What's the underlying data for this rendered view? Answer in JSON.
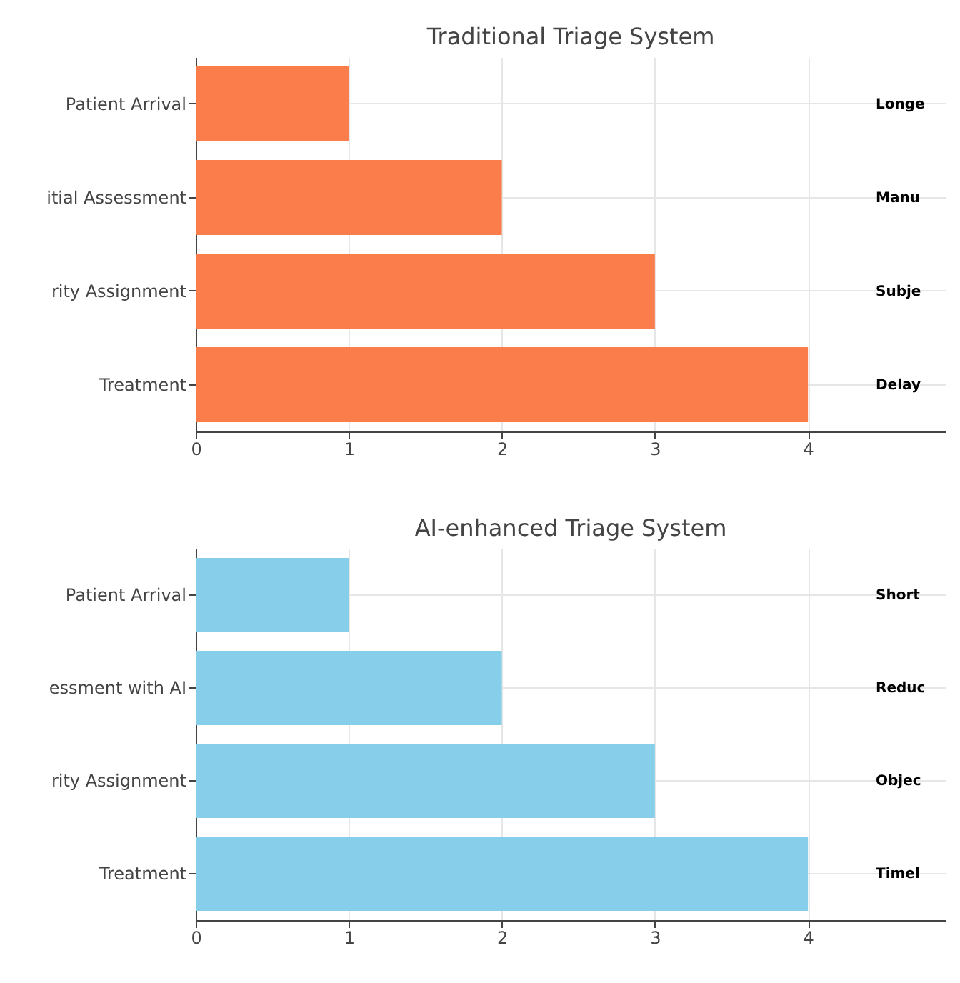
{
  "chart_data": [
    {
      "type": "bar",
      "orientation": "horizontal",
      "title": "Traditional Triage System",
      "categories": [
        "Patient Arrival",
        "itial Assessment",
        "rity Assignment",
        "Treatment"
      ],
      "values": [
        1,
        2,
        3,
        4
      ],
      "color": "#fb7d4c",
      "xlim": [
        0,
        4.9
      ],
      "xticks": [
        0,
        1,
        2,
        3,
        4
      ],
      "grid": true,
      "annotations": [
        "Longe",
        "Manu",
        "Subje",
        "Delay"
      ]
    },
    {
      "type": "bar",
      "orientation": "horizontal",
      "title": "AI-enhanced Triage System",
      "categories": [
        "Patient Arrival",
        "essment with AI",
        "rity Assignment",
        "Treatment"
      ],
      "values": [
        1,
        2,
        3,
        4
      ],
      "color": "#87ceeb",
      "xlim": [
        0,
        4.9
      ],
      "xticks": [
        0,
        1,
        2,
        3,
        4
      ],
      "grid": true,
      "annotations": [
        "Short",
        "Reduc",
        "Objec",
        "Timel"
      ]
    }
  ]
}
